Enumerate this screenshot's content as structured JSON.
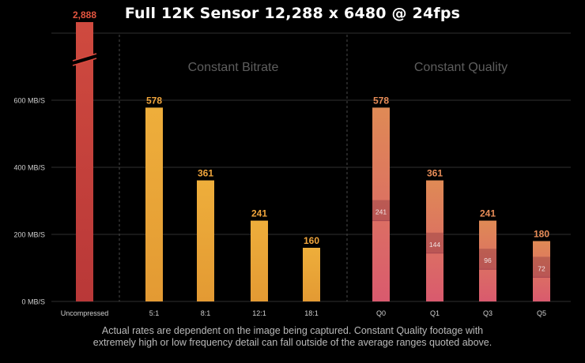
{
  "title": "Full 12K Sensor 12,288 x 6480 @ 24fps",
  "footnote": {
    "line1": "Actual rates are dependent on the image being captured. Constant Quality footage with",
    "line2": "extremely high or low frequency detail can fall outside of the average ranges quoted above."
  },
  "colors": {
    "background": "#000000",
    "grid": "#2f2f2f",
    "divider": "#4a4a4a",
    "uncompressed": "#c23e3a",
    "uncompressed_label": "#e4553f",
    "constant_bitrate": "#e8a838",
    "constant_bitrate_label": "#f0a53c",
    "constant_quality_top": "#df8a55",
    "constant_quality_bottom": "#d95a6e",
    "constant_quality_label": "#e98d58",
    "axis_text": "#cfcfcf",
    "section_text": "#5e5e5e"
  },
  "chart_data": {
    "type": "bar",
    "title": "Full 12K Sensor 12,288 x 6480 @ 24fps",
    "ylabel": "MB/S",
    "ylim": [
      0,
      800
    ],
    "axis_break": true,
    "y_ticks": [
      {
        "value": 0,
        "label": "0 MB/S"
      },
      {
        "value": 200,
        "label": "200 MB/S"
      },
      {
        "value": 400,
        "label": "400 MB/S"
      },
      {
        "value": 600,
        "label": "600 MB/S"
      }
    ],
    "grid": true,
    "sections": [
      {
        "name": "Constant Bitrate",
        "categories": [
          "5:1",
          "8:1",
          "12:1",
          "18:1"
        ]
      },
      {
        "name": "Constant Quality",
        "categories": [
          "Q0",
          "Q1",
          "Q3",
          "Q5"
        ]
      }
    ],
    "categories": [
      "Uncompressed",
      "5:1",
      "8:1",
      "12:1",
      "18:1",
      "Q0",
      "Q1",
      "Q3",
      "Q5"
    ],
    "bars": [
      {
        "category": "Uncompressed",
        "value": 2888,
        "label": "2,888",
        "group": "uncompressed",
        "broken": true
      },
      {
        "category": "5:1",
        "value": 578,
        "label": "578",
        "group": "constant_bitrate"
      },
      {
        "category": "8:1",
        "value": 361,
        "label": "361",
        "group": "constant_bitrate"
      },
      {
        "category": "12:1",
        "value": 241,
        "label": "241",
        "group": "constant_bitrate"
      },
      {
        "category": "18:1",
        "value": 160,
        "label": "160",
        "group": "constant_bitrate"
      },
      {
        "category": "Q0",
        "value": 578,
        "label": "578",
        "group": "constant_quality",
        "min_value": 241,
        "min_label": "241"
      },
      {
        "category": "Q1",
        "value": 361,
        "label": "361",
        "group": "constant_quality",
        "min_value": 144,
        "min_label": "144"
      },
      {
        "category": "Q3",
        "value": 241,
        "label": "241",
        "group": "constant_quality",
        "min_value": 96,
        "min_label": "96"
      },
      {
        "category": "Q5",
        "value": 180,
        "label": "180",
        "group": "constant_quality",
        "min_value": 72,
        "min_label": "72"
      }
    ]
  }
}
